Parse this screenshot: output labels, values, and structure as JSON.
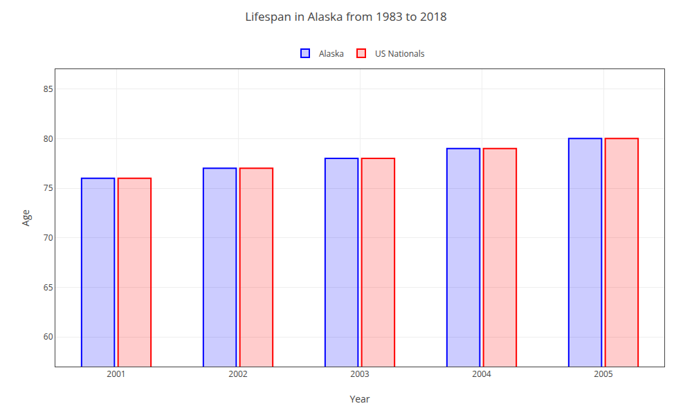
{
  "chart_data": {
    "type": "bar",
    "title": "Lifespan in Alaska from 1983 to 2018",
    "xlabel": "Year",
    "ylabel": "Age",
    "categories": [
      "2001",
      "2002",
      "2003",
      "2004",
      "2005"
    ],
    "series": [
      {
        "name": "Alaska",
        "color": "#0000ff",
        "values": [
          76.0,
          77.0,
          78.0,
          79.0,
          80.0
        ]
      },
      {
        "name": "US Nationals",
        "color": "#ff0000",
        "values": [
          76.0,
          77.0,
          78.0,
          79.0,
          80.0
        ]
      }
    ],
    "ylim": [
      57,
      87
    ],
    "yticks": [
      60,
      65,
      70,
      75,
      80,
      85
    ],
    "grid": true,
    "legend": "top"
  }
}
